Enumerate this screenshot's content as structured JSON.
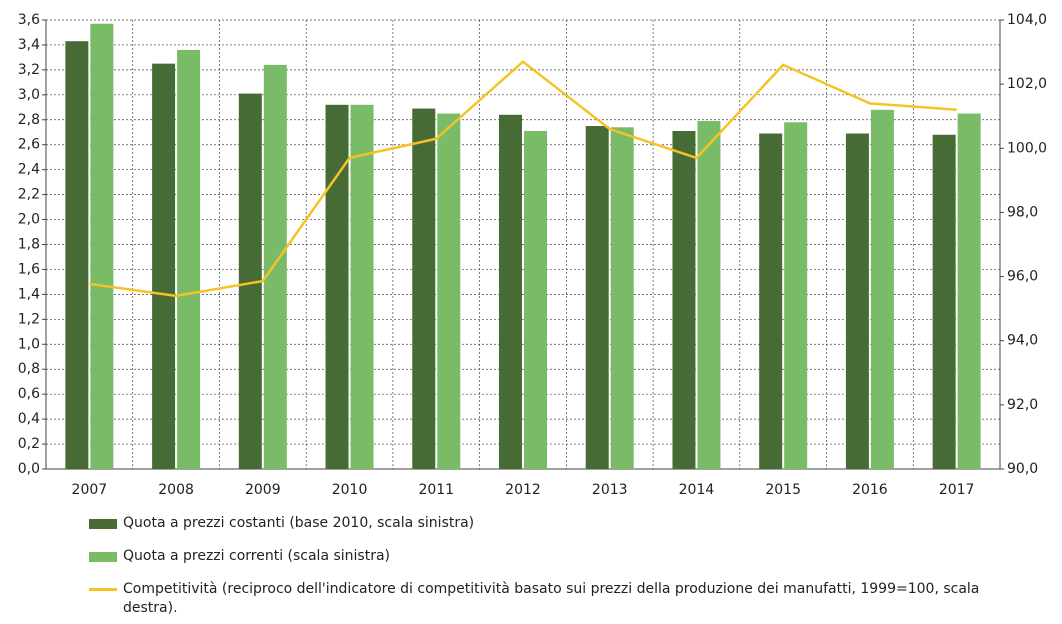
{
  "chart_data": {
    "type": "bar",
    "categories": [
      "2007",
      "2008",
      "2009",
      "2010",
      "2011",
      "2012",
      "2013",
      "2014",
      "2015",
      "2016",
      "2017"
    ],
    "series": [
      {
        "name": "Quota a prezzi costanti (base 2010, scala sinistra)",
        "color": "#476b35",
        "type": "bar",
        "values": [
          3.43,
          3.25,
          3.01,
          2.92,
          2.89,
          2.84,
          2.75,
          2.71,
          2.69,
          2.69,
          2.68
        ]
      },
      {
        "name": "Quota a prezzi correnti (scala sinistra)",
        "color": "#79bb67",
        "type": "bar",
        "values": [
          3.57,
          3.36,
          3.24,
          2.92,
          2.85,
          2.71,
          2.74,
          2.79,
          2.78,
          2.88,
          2.85
        ]
      },
      {
        "name": "Competitività (reciproco dell'indicatore di competitività basato sui prezzi della produzione dei manufatti, 1999=100, scala destra).",
        "color": "#f5c325",
        "type": "line",
        "axis": "y2",
        "values": [
          95.77,
          95.4,
          95.86,
          99.7,
          100.3,
          102.7,
          100.6,
          99.7,
          102.6,
          101.4,
          101.2
        ]
      }
    ],
    "ylim": [
      0,
      3.6
    ],
    "yticks": [
      {
        "value": 0,
        "label": "0,0"
      },
      {
        "value": 0.2,
        "label": "0,2"
      },
      {
        "value": 0.4,
        "label": "0,4"
      },
      {
        "value": 0.6,
        "label": "0,6"
      },
      {
        "value": 0.8,
        "label": "0,8"
      },
      {
        "value": 1,
        "label": "1,0"
      },
      {
        "value": 1.2,
        "label": "1,2"
      },
      {
        "value": 1.4,
        "label": "1,4"
      },
      {
        "value": 1.6,
        "label": "1,6"
      },
      {
        "value": 1.8,
        "label": "1,8"
      },
      {
        "value": 2,
        "label": "2,0"
      },
      {
        "value": 2.2,
        "label": "2,2"
      },
      {
        "value": 2.4,
        "label": "2,4"
      },
      {
        "value": 2.6,
        "label": "2,6"
      },
      {
        "value": 2.8,
        "label": "2,8"
      },
      {
        "value": 3,
        "label": "3,0"
      },
      {
        "value": 3.2,
        "label": "3,2"
      },
      {
        "value": 3.4,
        "label": "3,4"
      },
      {
        "value": 3.6,
        "label": "3,6"
      }
    ],
    "y2lim": [
      90,
      104
    ],
    "y2ticks": [
      {
        "value": 90,
        "label": "90,0"
      },
      {
        "value": 92,
        "label": "92,0"
      },
      {
        "value": 94,
        "label": "94,0"
      },
      {
        "value": 96,
        "label": "96,0"
      },
      {
        "value": 98,
        "label": "98,0"
      },
      {
        "value": 100,
        "label": "100,0"
      },
      {
        "value": 102,
        "label": "102,0"
      },
      {
        "value": 104,
        "label": "104,0"
      }
    ],
    "grid": true
  }
}
